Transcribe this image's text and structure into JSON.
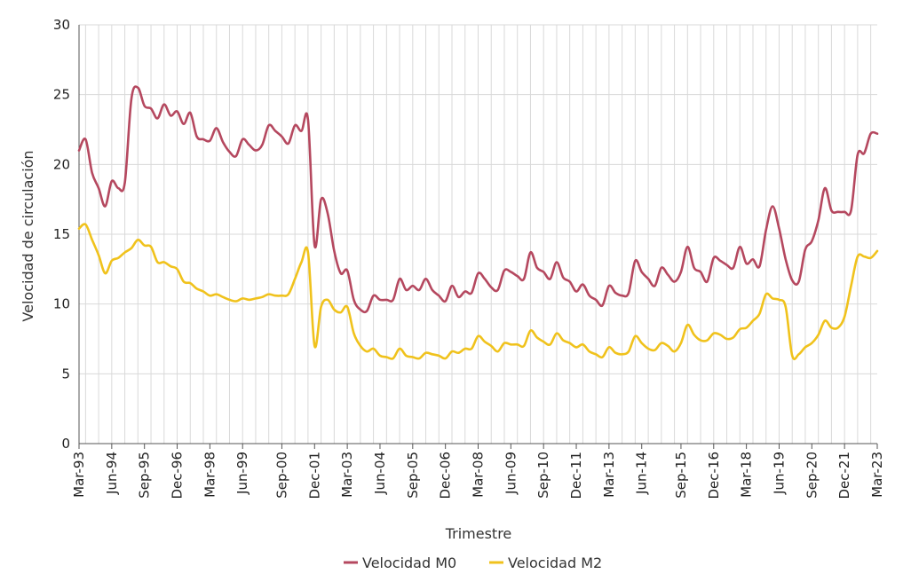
{
  "chart_data": {
    "type": "line",
    "title": "",
    "xlabel": "Trimestre",
    "ylabel": "Velocidad de circulación",
    "ylim": [
      0,
      30
    ],
    "y_ticks": [
      0,
      5,
      10,
      15,
      20,
      25,
      30
    ],
    "grid": true,
    "legend_position": "bottom-center",
    "x_start": "Mar-93",
    "x_ticks": [
      "Mar-93",
      "Jun-94",
      "Sep-95",
      "Dec-96",
      "Mar-98",
      "Jun-99",
      "Sep-00",
      "Dec-01",
      "Mar-03",
      "Jun-04",
      "Sep-05",
      "Dec-06",
      "Mar-08",
      "Jun-09",
      "Sep-10",
      "Dec-11",
      "Mar-13",
      "Jun-14",
      "Sep-15",
      "Dec-16",
      "Mar-18",
      "Jun-19",
      "Sep-20",
      "Dec-21",
      "Mar-23"
    ],
    "series": [
      {
        "name": "Velocidad M0",
        "color": "#b5485f",
        "values": [
          21.0,
          21.8,
          19.4,
          18.3,
          17.0,
          18.8,
          18.3,
          18.7,
          24.7,
          25.5,
          24.2,
          24.0,
          23.3,
          24.3,
          23.5,
          23.8,
          22.9,
          23.7,
          22.0,
          21.8,
          21.7,
          22.6,
          21.6,
          20.9,
          20.6,
          21.8,
          21.4,
          21.0,
          21.4,
          22.8,
          22.4,
          22.0,
          21.5,
          22.8,
          22.4,
          23.2,
          14.2,
          17.5,
          16.5,
          13.8,
          12.2,
          12.4,
          10.3,
          9.6,
          9.5,
          10.6,
          10.3,
          10.3,
          10.3,
          11.8,
          11.0,
          11.3,
          11.0,
          11.8,
          11.0,
          10.6,
          10.2,
          11.3,
          10.5,
          10.9,
          10.8,
          12.2,
          11.8,
          11.2,
          11.0,
          12.4,
          12.3,
          12.0,
          11.8,
          13.7,
          12.6,
          12.3,
          11.8,
          13.0,
          11.9,
          11.6,
          10.9,
          11.4,
          10.6,
          10.3,
          9.9,
          11.3,
          10.8,
          10.6,
          10.8,
          13.1,
          12.3,
          11.8,
          11.3,
          12.6,
          12.1,
          11.6,
          12.3,
          14.1,
          12.6,
          12.3,
          11.6,
          13.3,
          13.1,
          12.8,
          12.6,
          14.1,
          12.9,
          13.2,
          12.7,
          15.3,
          17.0,
          15.4,
          13.2,
          11.7,
          11.6,
          13.9,
          14.5,
          16.0,
          18.3,
          16.7,
          16.6,
          16.6,
          16.7,
          20.7,
          20.8,
          22.2,
          22.2
        ]
      },
      {
        "name": "Velocidad M2",
        "color": "#f0c21c",
        "values": [
          15.4,
          15.7,
          14.6,
          13.5,
          12.2,
          13.1,
          13.3,
          13.7,
          14.0,
          14.6,
          14.2,
          14.1,
          13.0,
          13.0,
          12.7,
          12.5,
          11.6,
          11.5,
          11.1,
          10.9,
          10.6,
          10.7,
          10.5,
          10.3,
          10.2,
          10.4,
          10.3,
          10.4,
          10.5,
          10.7,
          10.6,
          10.6,
          10.7,
          11.8,
          13.0,
          13.7,
          7.0,
          9.8,
          10.3,
          9.6,
          9.4,
          9.8,
          7.9,
          7.0,
          6.6,
          6.8,
          6.3,
          6.2,
          6.1,
          6.8,
          6.3,
          6.2,
          6.1,
          6.5,
          6.4,
          6.3,
          6.1,
          6.6,
          6.5,
          6.8,
          6.8,
          7.7,
          7.3,
          7.0,
          6.6,
          7.2,
          7.1,
          7.1,
          7.0,
          8.1,
          7.6,
          7.3,
          7.1,
          7.9,
          7.4,
          7.2,
          6.9,
          7.1,
          6.6,
          6.4,
          6.2,
          6.9,
          6.5,
          6.4,
          6.6,
          7.7,
          7.2,
          6.8,
          6.7,
          7.2,
          7.0,
          6.6,
          7.2,
          8.5,
          7.8,
          7.4,
          7.4,
          7.9,
          7.8,
          7.5,
          7.6,
          8.2,
          8.3,
          8.8,
          9.3,
          10.7,
          10.4,
          10.3,
          9.8,
          6.3,
          6.4,
          6.9,
          7.2,
          7.8,
          8.8,
          8.3,
          8.3,
          9.1,
          11.3,
          13.4,
          13.4,
          13.3,
          13.8
        ]
      }
    ]
  }
}
